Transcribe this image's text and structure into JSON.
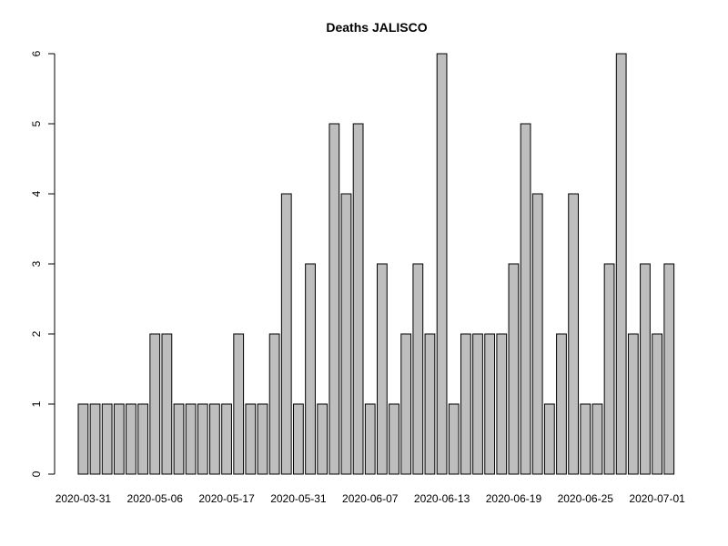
{
  "chart_data": {
    "type": "bar",
    "title": "Deaths JALISCO",
    "xlabel": "",
    "ylabel": "",
    "ylim": [
      0,
      6
    ],
    "y_ticks": [
      0,
      1,
      2,
      3,
      4,
      5,
      6
    ],
    "grid": false,
    "bar_color": "#bebebe",
    "bar_border_color": "#000000",
    "x_tick_labels": [
      {
        "label": "2020-03-31",
        "index": 0
      },
      {
        "label": "2020-05-06",
        "index": 6
      },
      {
        "label": "2020-05-17",
        "index": 12
      },
      {
        "label": "2020-05-31",
        "index": 18
      },
      {
        "label": "2020-06-07",
        "index": 24
      },
      {
        "label": "2020-06-13",
        "index": 30
      },
      {
        "label": "2020-06-19",
        "index": 36
      },
      {
        "label": "2020-06-25",
        "index": 42
      },
      {
        "label": "2020-07-01",
        "index": 48
      }
    ],
    "values": [
      1,
      1,
      1,
      1,
      1,
      1,
      2,
      2,
      1,
      1,
      1,
      1,
      1,
      2,
      1,
      1,
      2,
      4,
      1,
      3,
      1,
      5,
      4,
      5,
      1,
      3,
      1,
      2,
      3,
      2,
      6,
      1,
      2,
      2,
      2,
      2,
      3,
      5,
      4,
      1,
      2,
      4,
      1,
      1,
      3,
      6,
      2,
      3,
      2,
      3
    ]
  }
}
